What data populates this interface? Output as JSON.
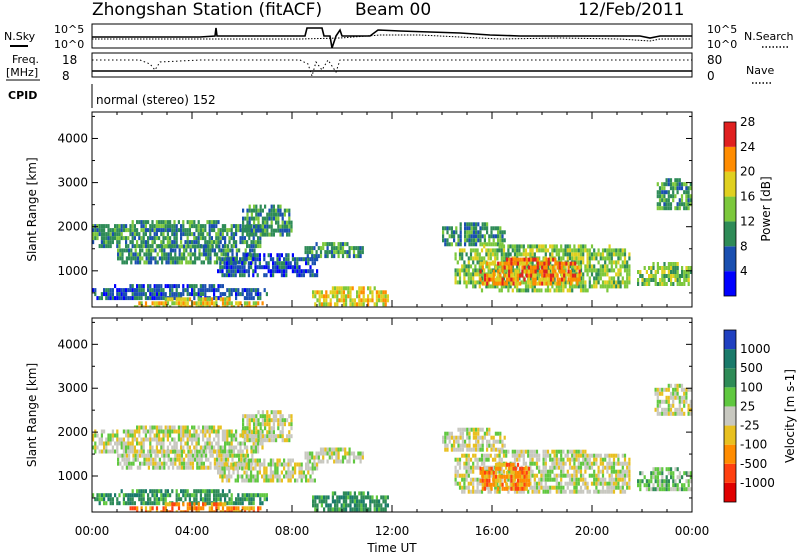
{
  "header": {
    "station": "Zhongshan Station (fitACF)",
    "beam": "Beam 00",
    "date": "12/Feb/2011"
  },
  "side_labels": {
    "nsky": "N.Sky",
    "freq": "Freq.",
    "freq_unit": "[MHz]",
    "cpid": "CPID",
    "nsearch": "N.Search",
    "nave": "Nave"
  },
  "strip_ticks": {
    "noise_left_top": "10^5",
    "noise_left_bottom": "10^0",
    "noise_right_top": "10^5",
    "noise_right_bottom": "10^0",
    "freq_top": "18",
    "freq_bottom": "8",
    "nave_top": "80",
    "nave_bottom": "0"
  },
  "cpid_text": "normal (stereo) 152",
  "chart_data": [
    {
      "type": "heatmap",
      "name_panel": "power",
      "ylabel": "Slant Range [km]",
      "xlabel": "Time UT",
      "x_ticks": [
        "00:00",
        "04:00",
        "08:00",
        "12:00",
        "16:00",
        "20:00",
        "00:00"
      ],
      "y_ticks": [
        1000,
        2000,
        3000,
        4000
      ],
      "ylim": [
        180,
        4600
      ],
      "xlim_hours": [
        0,
        24
      ],
      "colorbar": {
        "label": "Power [dB]",
        "ticks": [
          "4",
          "8",
          "12",
          "16",
          "20",
          "24",
          "28"
        ],
        "colors": [
          "#0000ff",
          "#1a4fb0",
          "#2e8b57",
          "#7cc83c",
          "#e0d020",
          "#ff8c00",
          "#e02020"
        ]
      },
      "echo_regions": [
        {
          "t0": 0.0,
          "t1": 6.8,
          "r0": 1550,
          "r1": 2150,
          "level": 2
        },
        {
          "t0": 1.0,
          "t1": 6.5,
          "r0": 1200,
          "r1": 1600,
          "level": 2
        },
        {
          "t0": 0.0,
          "t1": 7.0,
          "r0": 400,
          "r1": 700,
          "level": 1
        },
        {
          "t0": 1.5,
          "t1": 6.8,
          "r0": 200,
          "r1": 400,
          "level": 4
        },
        {
          "t0": 5.0,
          "t1": 9.0,
          "r0": 900,
          "r1": 1400,
          "level": 1
        },
        {
          "t0": 6.0,
          "t1": 8.0,
          "r0": 1800,
          "r1": 2500,
          "level": 2
        },
        {
          "t0": 8.5,
          "t1": 10.8,
          "r0": 1350,
          "r1": 1650,
          "level": 2
        },
        {
          "t0": 8.8,
          "t1": 11.8,
          "r0": 250,
          "r1": 650,
          "level": 4
        },
        {
          "t0": 14.0,
          "t1": 16.5,
          "r0": 1600,
          "r1": 2100,
          "level": 2
        },
        {
          "t0": 14.5,
          "t1": 21.5,
          "r0": 600,
          "r1": 1600,
          "level": 3
        },
        {
          "t0": 15.5,
          "t1": 19.5,
          "r0": 700,
          "r1": 1300,
          "level": 5
        },
        {
          "t0": 22.5,
          "t1": 24.0,
          "r0": 2400,
          "r1": 3100,
          "level": 2
        },
        {
          "t0": 21.8,
          "t1": 24.0,
          "r0": 700,
          "r1": 1200,
          "level": 3
        }
      ]
    },
    {
      "type": "heatmap",
      "name_panel": "velocity",
      "ylabel": "Slant Range [km]",
      "xlabel": "Time UT",
      "x_ticks": [
        "00:00",
        "04:00",
        "08:00",
        "12:00",
        "16:00",
        "20:00",
        "00:00"
      ],
      "y_ticks": [
        1000,
        2000,
        3000,
        4000
      ],
      "ylim": [
        180,
        4600
      ],
      "xlim_hours": [
        0,
        24
      ],
      "colorbar": {
        "label": "Velocity [m s-1]",
        "ticks": [
          "1000",
          "500",
          "100",
          "25",
          "-25",
          "-100",
          "-500",
          "-1000"
        ],
        "colors": [
          "#2040c0",
          "#1a7a6a",
          "#2e8b57",
          "#60c840",
          "#c8c8c0",
          "#e8c020",
          "#ff8c00",
          "#ff4010",
          "#e00000"
        ]
      },
      "echo_regions": [
        {
          "t0": 0.0,
          "t1": 6.8,
          "r0": 1550,
          "r1": 2150,
          "level": 4
        },
        {
          "t0": 1.0,
          "t1": 6.5,
          "r0": 1200,
          "r1": 1600,
          "level": 4
        },
        {
          "t0": 0.0,
          "t1": 7.0,
          "r0": 400,
          "r1": 700,
          "level": 2
        },
        {
          "t0": 1.5,
          "t1": 6.8,
          "r0": 200,
          "r1": 400,
          "level": 6
        },
        {
          "t0": 5.0,
          "t1": 9.0,
          "r0": 900,
          "r1": 1400,
          "level": 4
        },
        {
          "t0": 6.0,
          "t1": 8.0,
          "r0": 1800,
          "r1": 2500,
          "level": 4
        },
        {
          "t0": 8.5,
          "t1": 10.8,
          "r0": 1350,
          "r1": 1650,
          "level": 4
        },
        {
          "t0": 8.8,
          "t1": 11.8,
          "r0": 250,
          "r1": 650,
          "level": 2
        },
        {
          "t0": 14.0,
          "t1": 16.5,
          "r0": 1600,
          "r1": 2100,
          "level": 4
        },
        {
          "t0": 14.5,
          "t1": 21.5,
          "r0": 600,
          "r1": 1600,
          "level": 4
        },
        {
          "t0": 15.5,
          "t1": 17.5,
          "r0": 700,
          "r1": 1300,
          "level": 6
        },
        {
          "t0": 22.5,
          "t1": 24.0,
          "r0": 2400,
          "r1": 3100,
          "level": 4
        },
        {
          "t0": 21.8,
          "t1": 24.0,
          "r0": 700,
          "r1": 1200,
          "level": 3
        }
      ]
    }
  ]
}
